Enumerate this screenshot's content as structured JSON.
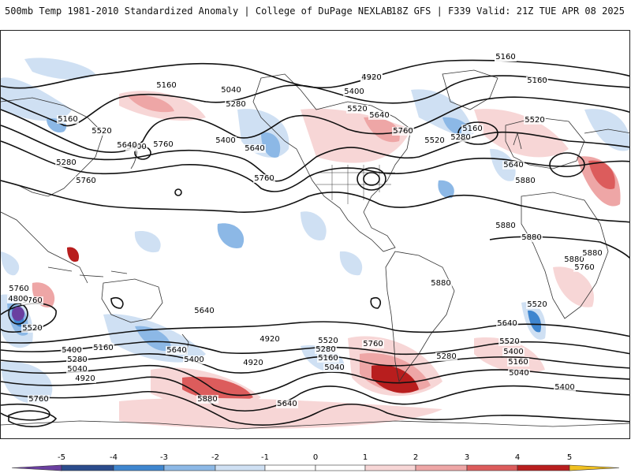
{
  "header": {
    "title": "500mb Temp 1981-2010 Standardized Anomaly | College of DuPage NEXLAB",
    "run_info": "18Z GFS | F339 Valid: 21Z TUE APR 08 2025"
  },
  "colors": {
    "anom_neg5": "#6a3fa0",
    "anom_neg4": "#2b4c8c",
    "anom_neg3": "#3f86cf",
    "anom_neg2": "#8cb8e6",
    "anom_neg1": "#cfe0f3",
    "anom_pos1": "#f7d6d6",
    "anom_pos2": "#eea6a6",
    "anom_pos3": "#dc5c5c",
    "anom_pos4": "#b81e1e",
    "anom_pos5": "#f0c020",
    "contour": "#111111",
    "coast": "#333333"
  },
  "contour_labels": [
    {
      "text": "5160"
    },
    {
      "text": "5160"
    },
    {
      "text": "5160"
    },
    {
      "text": "5160"
    },
    {
      "text": "5040"
    },
    {
      "text": "5280"
    },
    {
      "text": "5400"
    },
    {
      "text": "5520"
    },
    {
      "text": "5640"
    },
    {
      "text": "5760"
    },
    {
      "text": "5400"
    },
    {
      "text": "5520"
    },
    {
      "text": "5640"
    },
    {
      "text": "5760"
    },
    {
      "text": "5160"
    },
    {
      "text": "5280"
    },
    {
      "text": "5520"
    },
    {
      "text": "5160"
    },
    {
      "text": "5280"
    },
    {
      "text": "5400"
    },
    {
      "text": "5640"
    },
    {
      "text": "5520"
    },
    {
      "text": "5640"
    },
    {
      "text": "5760"
    },
    {
      "text": "5760"
    },
    {
      "text": "5880"
    },
    {
      "text": "5880"
    },
    {
      "text": "5880"
    },
    {
      "text": "5880"
    },
    {
      "text": "5880"
    },
    {
      "text": "5880"
    },
    {
      "text": "5760"
    },
    {
      "text": "5760"
    },
    {
      "text": "5640"
    },
    {
      "text": "5520"
    },
    {
      "text": "5400"
    },
    {
      "text": "5160"
    },
    {
      "text": "5280"
    },
    {
      "text": "5040"
    },
    {
      "text": "5640"
    },
    {
      "text": "5400"
    },
    {
      "text": "4920"
    },
    {
      "text": "4920"
    },
    {
      "text": "5520"
    },
    {
      "text": "5280"
    },
    {
      "text": "5160"
    },
    {
      "text": "5040"
    },
    {
      "text": "5760"
    },
    {
      "text": "5280"
    },
    {
      "text": "5640"
    },
    {
      "text": "5520"
    },
    {
      "text": "5400"
    },
    {
      "text": "5160"
    },
    {
      "text": "5040"
    },
    {
      "text": "4920"
    },
    {
      "text": "5880"
    },
    {
      "text": "5760"
    },
    {
      "text": "4800"
    },
    {
      "text": "5760"
    },
    {
      "text": "5640"
    },
    {
      "text": "5520"
    },
    {
      "text": "5400"
    },
    {
      "text": "5160"
    },
    {
      "text": "4920"
    }
  ],
  "legend": {
    "ticks": [
      "-5",
      "-4",
      "-3",
      "-2",
      "-1",
      "0",
      "1",
      "2",
      "3",
      "4",
      "5"
    ]
  }
}
